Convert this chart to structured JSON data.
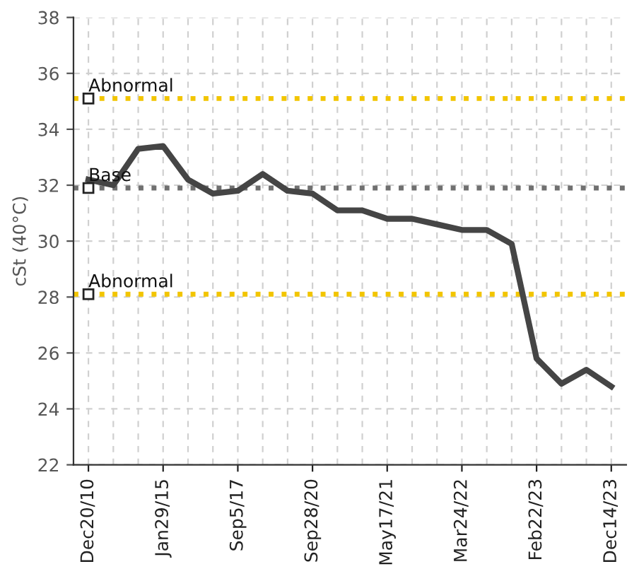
{
  "chart_data": {
    "type": "line",
    "ylabel": "cSt (40°C)",
    "categories": [
      "Dec20/10",
      null,
      null,
      "Jan29/15",
      null,
      null,
      "Sep5/17",
      null,
      null,
      "Sep28/20",
      null,
      null,
      "May17/21",
      null,
      null,
      "Mar24/22",
      null,
      null,
      "Feb22/23",
      null,
      null,
      "Dec14/23"
    ],
    "series": [
      {
        "color": "#454545",
        "values": [
          32.2,
          32.0,
          33.3,
          33.4,
          32.2,
          31.7,
          31.8,
          32.4,
          31.8,
          31.7,
          31.1,
          31.1,
          30.8,
          30.8,
          30.6,
          30.4,
          30.4,
          29.9,
          25.8,
          24.9,
          25.4,
          24.8
        ]
      }
    ],
    "ylim": [
      22,
      38
    ],
    "yticks": [
      22,
      24,
      26,
      28,
      30,
      32,
      34,
      36,
      38
    ],
    "ref_lines": [
      {
        "axis": "y",
        "value": 35.1,
        "label": "Abnormal",
        "color": "#f2c500",
        "line_style": "dotted"
      },
      {
        "axis": "y",
        "value": 31.9,
        "label": "Base",
        "color": "#707070",
        "line_style": "dotted"
      },
      {
        "axis": "y",
        "value": 28.1,
        "label": "Abnormal",
        "color": "#f2c500",
        "line_style": "dotted"
      }
    ],
    "grid": true,
    "line_style": "solid",
    "marker": "none"
  }
}
